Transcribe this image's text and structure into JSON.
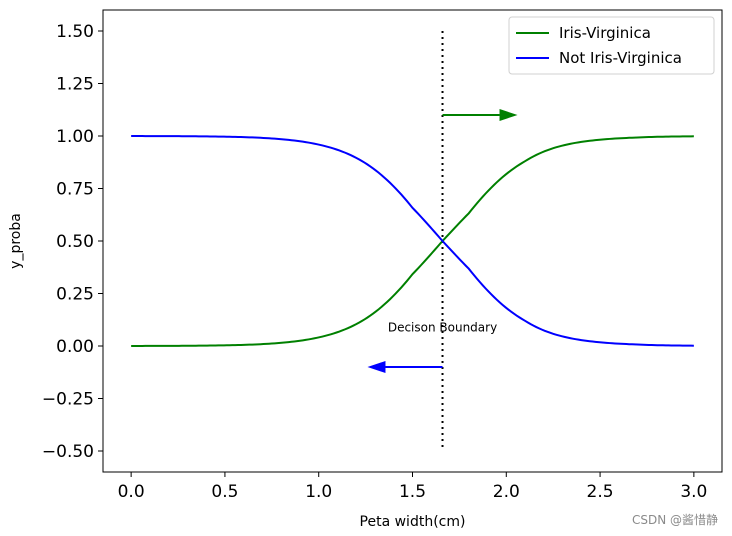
{
  "chart_data": {
    "type": "line",
    "xlabel": "Peta width(cm)",
    "ylabel": "y_proba",
    "xlim": [
      -0.15,
      3.15
    ],
    "ylim": [
      -0.6,
      1.6
    ],
    "xticks": [
      0.0,
      0.5,
      1.0,
      1.5,
      2.0,
      2.5,
      3.0
    ],
    "xtick_labels": [
      "0.0",
      "0.5",
      "1.0",
      "1.5",
      "2.0",
      "2.5",
      "3.0"
    ],
    "yticks": [
      -0.5,
      -0.25,
      0.0,
      0.25,
      0.5,
      0.75,
      1.0,
      1.25,
      1.5
    ],
    "ytick_labels": [
      "−0.50",
      "−0.25",
      "0.00",
      "0.25",
      "0.50",
      "0.75",
      "1.00",
      "1.25",
      "1.50"
    ],
    "grid": false,
    "legend_position": "top-right",
    "series": [
      {
        "name": "Iris-Virginica",
        "color": "#008000",
        "x": [
          0.0,
          0.15,
          0.3,
          0.45,
          0.6,
          0.75,
          0.9,
          1.05,
          1.2,
          1.35,
          1.5,
          1.66,
          1.8,
          1.95,
          2.1,
          2.25,
          2.4,
          2.55,
          2.7,
          2.85,
          3.0
        ],
        "y": [
          0.0002,
          0.0005,
          0.0011,
          0.0025,
          0.0054,
          0.0118,
          0.025,
          0.052,
          0.104,
          0.198,
          0.342,
          0.5,
          0.632,
          0.78,
          0.88,
          0.942,
          0.972,
          0.986,
          0.993,
          0.997,
          0.9985
        ]
      },
      {
        "name": "Not Iris-Virginica",
        "color": "#0000ff",
        "x": [
          0.0,
          0.15,
          0.3,
          0.45,
          0.6,
          0.75,
          0.9,
          1.05,
          1.2,
          1.35,
          1.5,
          1.66,
          1.8,
          1.95,
          2.1,
          2.25,
          2.4,
          2.55,
          2.7,
          2.85,
          3.0
        ],
        "y": [
          0.9998,
          0.9995,
          0.9989,
          0.9975,
          0.9946,
          0.9882,
          0.975,
          0.948,
          0.896,
          0.802,
          0.658,
          0.5,
          0.368,
          0.22,
          0.12,
          0.058,
          0.028,
          0.014,
          0.007,
          0.003,
          0.0015
        ]
      }
    ],
    "decision_boundary": {
      "x": 1.66,
      "y_range": [
        -0.5,
        1.5
      ]
    },
    "arrows": [
      {
        "x_start": 1.66,
        "x_end": 2.06,
        "y": 1.1,
        "color": "#008000"
      },
      {
        "x_start": 1.66,
        "x_end": 1.26,
        "y": -0.1,
        "color": "#0000ff"
      }
    ],
    "annotation": {
      "text": "Decison Boundary",
      "x": 1.66,
      "y": 0.07
    }
  },
  "watermark": "CSDN @酱惜静"
}
